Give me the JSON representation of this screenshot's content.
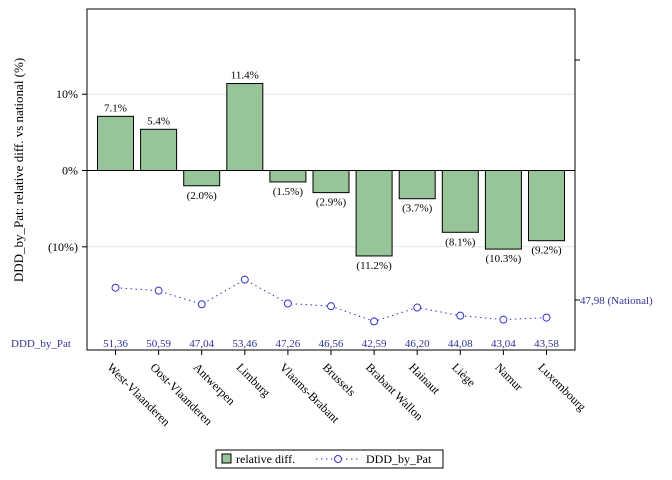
{
  "chart_data": {
    "type": "bar",
    "ylabel": "DDD_by_Pat: relative diff. vs national (%)",
    "ylim": [
      -20.7,
      20.3
    ],
    "y_ticks": [
      {
        "value": 10,
        "label": "10%"
      },
      {
        "value": 0,
        "label": "0%"
      },
      {
        "value": -10,
        "label": "(10%)"
      }
    ],
    "categories": [
      "West-Vlaanderen",
      "Oost-Vlaanderen",
      "Antwerpen",
      "Limburg",
      "Vlaams-Brabant",
      "Brussels",
      "Brabant Wallon",
      "Hainaut",
      "Liège",
      "Namur",
      "Luxembourg"
    ],
    "series": [
      {
        "name": "relative diff.",
        "type": "bar",
        "color": "#98c49a",
        "values": [
          7.1,
          5.4,
          -2.0,
          11.4,
          -1.5,
          -2.9,
          -11.2,
          -3.7,
          -8.1,
          -10.3,
          -9.2
        ],
        "labels": [
          "7.1%",
          "5.4%",
          "(2.0%)",
          "11.4%",
          "(1.5%)",
          "(2.9%)",
          "(11.2%)",
          "(3.7%)",
          "(8.1%)",
          "(10.3%)",
          "(9.2%)"
        ]
      },
      {
        "name": "DDD_by_Pat",
        "type": "line",
        "color": "#3333cc",
        "values": [
          51.36,
          50.59,
          47.04,
          53.46,
          47.26,
          46.56,
          42.59,
          46.2,
          44.08,
          43.04,
          43.58
        ],
        "labels": [
          "51,36",
          "50,59",
          "47,04",
          "53,46",
          "47,26",
          "46,56",
          "42,59",
          "46,20",
          "44,08",
          "43,04",
          "43,58"
        ]
      }
    ],
    "secondary_axis": {
      "reference_value": 47.98,
      "reference_label": "47,98 (National)"
    },
    "value_row_label": "DDD_by_Pat",
    "legend": {
      "position": "bottom",
      "items": [
        "relative diff.",
        "DDD_by_Pat"
      ]
    }
  }
}
